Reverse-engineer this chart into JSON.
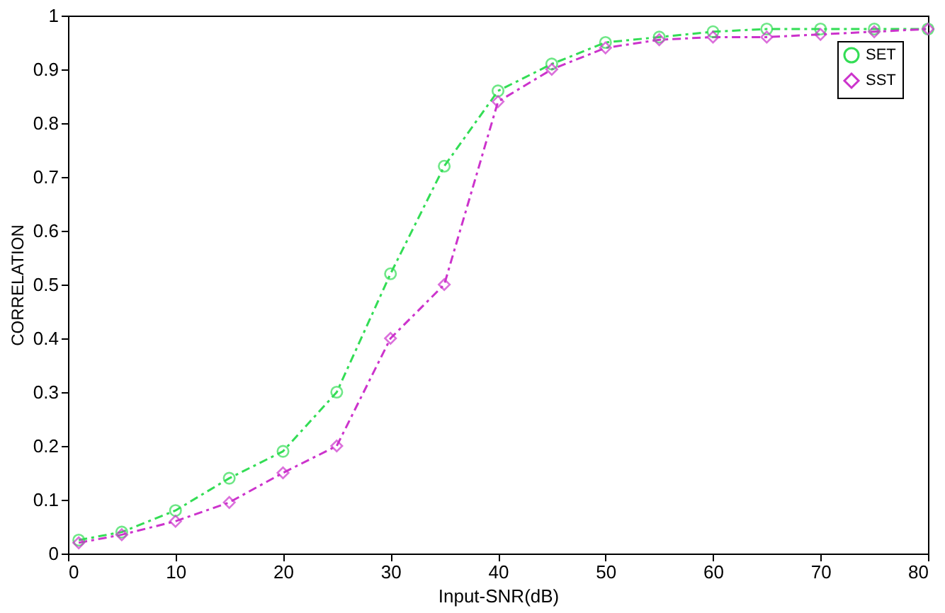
{
  "chart_data": {
    "type": "line",
    "xlabel": "Input-SNR(dB)",
    "ylabel": "CORRELATION",
    "x": [
      1,
      5,
      10,
      15,
      20,
      25,
      30,
      35,
      40,
      45,
      50,
      55,
      60,
      65,
      70,
      75,
      80
    ],
    "series": [
      {
        "name": "SET",
        "color": "#33dd55",
        "marker": "circle",
        "values": [
          0.025,
          0.04,
          0.08,
          0.14,
          0.19,
          0.3,
          0.52,
          0.72,
          0.86,
          0.91,
          0.95,
          0.96,
          0.97,
          0.975,
          0.975,
          0.975,
          0.975
        ]
      },
      {
        "name": "SST",
        "color": "#cc33cc",
        "marker": "diamond",
        "values": [
          0.02,
          0.035,
          0.06,
          0.095,
          0.15,
          0.2,
          0.4,
          0.5,
          0.84,
          0.9,
          0.94,
          0.955,
          0.96,
          0.96,
          0.965,
          0.97,
          0.975
        ]
      }
    ],
    "xlim": [
      0,
      80
    ],
    "xticks": [
      0,
      10,
      20,
      30,
      40,
      50,
      60,
      70,
      80
    ],
    "ylim": [
      0,
      1
    ],
    "yticks": [
      0,
      0.1,
      0.2,
      0.3,
      0.4,
      0.5,
      0.6,
      0.7,
      0.8,
      0.9,
      1
    ],
    "line_style": "dashed",
    "grid": false,
    "legend": "top right"
  }
}
